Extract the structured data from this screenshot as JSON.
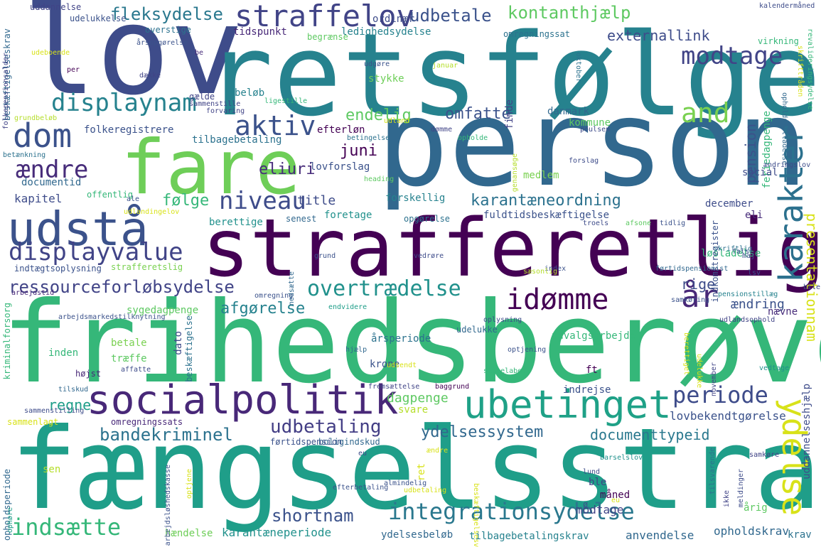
{
  "words": [
    {
      "text": "lov",
      "color": "#3e4c8a"
    },
    {
      "text": "retsfølge",
      "color": "#26828e"
    },
    {
      "text": "person",
      "color": "#31688e"
    },
    {
      "text": "fare",
      "color": "#6ece58"
    },
    {
      "text": "strafferetlig",
      "color": "#440154"
    },
    {
      "text": "udstå",
      "color": "#3b528b"
    },
    {
      "text": "frihedsberøve",
      "color": "#35b779"
    },
    {
      "text": "fængselsstraf",
      "color": "#1f9e89"
    },
    {
      "text": "socialpolitik",
      "color": "#482878"
    },
    {
      "text": "ubetinget",
      "color": "#1fa187"
    },
    {
      "text": "ydelse",
      "color": "#d8e219"
    },
    {
      "text": "karakter",
      "color": "#2c718e"
    },
    {
      "text": "straffelov",
      "color": "#414487"
    },
    {
      "text": "dom",
      "color": "#3b528b"
    },
    {
      "text": "displaynam",
      "color": "#26828e"
    },
    {
      "text": "displayvalue",
      "color": "#414487"
    },
    {
      "text": "aktiv",
      "color": "#3b528b"
    },
    {
      "text": "modtage",
      "color": "#414487"
    },
    {
      "text": "fleksydelse",
      "color": "#2a788e"
    },
    {
      "text": "udbetale",
      "color": "#3b528b"
    },
    {
      "text": "kontanthjælp",
      "color": "#5ec962"
    },
    {
      "text": "integrationsydelse",
      "color": "#2a788e"
    },
    {
      "text": "indsætte",
      "color": "#35b779"
    },
    {
      "text": "periode",
      "color": "#3e4c8a"
    },
    {
      "text": "idømme",
      "color": "#440154"
    },
    {
      "text": "overtrædelse",
      "color": "#21918c"
    },
    {
      "text": "ressourceforløbsydelse",
      "color": "#414487"
    },
    {
      "text": "niveau",
      "color": "#3e4c8a"
    },
    {
      "text": "ændre",
      "color": "#472c7a"
    },
    {
      "text": "år",
      "color": "#482878"
    },
    {
      "text": "and",
      "color": "#7ad151"
    },
    {
      "text": "udbetaling",
      "color": "#433e85"
    },
    {
      "text": "bandekriminel",
      "color": "#2c728e"
    },
    {
      "text": "shortnam",
      "color": "#3b528b"
    },
    {
      "text": "ydelsessystem",
      "color": "#31688e"
    },
    {
      "text": "documenttypeid",
      "color": "#2a788e"
    },
    {
      "text": "presentationnam",
      "color": "#d8e219"
    },
    {
      "text": "regne",
      "color": "#1f9e89"
    },
    {
      "text": "dagpenge",
      "color": "#5ec962"
    },
    {
      "text": "pension",
      "color": "#3b528b"
    },
    {
      "text": "endelig",
      "color": "#5ec962"
    },
    {
      "text": "omfatte",
      "color": "#3b528b"
    },
    {
      "text": "juni",
      "color": "#440154"
    },
    {
      "text": "eliuri",
      "color": "#472c7a"
    },
    {
      "text": "karantæneordning",
      "color": "#2c728e"
    },
    {
      "text": "afgørelse",
      "color": "#26828e"
    },
    {
      "text": "følge",
      "color": "#35b779"
    },
    {
      "text": "title",
      "color": "#3e4c8a"
    },
    {
      "text": "externallink",
      "color": "#3e4c8a"
    },
    {
      "text": "rige",
      "color": "#3e4c8a"
    },
    {
      "text": "ændring",
      "color": "#3b528b"
    },
    {
      "text": "lovbekendtgørelse",
      "color": "#3b528b"
    },
    {
      "text": "anvendelse",
      "color": "#31688e"
    },
    {
      "text": "opholdskrav",
      "color": "#31688e"
    },
    {
      "text": "karantæneperiode",
      "color": "#21918c"
    },
    {
      "text": "tilbagebetalingskrav",
      "color": "#26828e"
    },
    {
      "text": "ydelsesbeløb",
      "color": "#31688e"
    },
    {
      "text": "hændelse",
      "color": "#6ece58"
    },
    {
      "text": "modtage",
      "color": "#414487"
    },
    {
      "text": "krav",
      "color": "#2c728e"
    },
    {
      "text": "udvalgsarbejde",
      "color": "#35b779"
    },
    {
      "text": "sygedagpenge",
      "color": "#5ec962"
    },
    {
      "text": "udelukke",
      "color": "#31688e"
    },
    {
      "text": "årsperiode",
      "color": "#2c728e"
    },
    {
      "text": "indrejse",
      "color": "#3b528b"
    },
    {
      "text": "kapitel",
      "color": "#3e4c8a"
    },
    {
      "text": "documentid",
      "color": "#31688e"
    },
    {
      "text": "folkeregistrere",
      "color": "#3b528b"
    },
    {
      "text": "tilbagebetaling",
      "color": "#2c728e"
    },
    {
      "text": "lovforslag",
      "color": "#3b528b"
    },
    {
      "text": "efterløn",
      "color": "#440154"
    },
    {
      "text": "danmark",
      "color": "#31688e"
    },
    {
      "text": "kommune",
      "color": "#5ec962"
    },
    {
      "text": "feriedagpenge",
      "color": "#35b779"
    },
    {
      "text": "social",
      "color": "#3e4c8a"
    },
    {
      "text": "medlem",
      "color": "#7ad151"
    },
    {
      "text": "forskellig",
      "color": "#26828e"
    },
    {
      "text": "foretage",
      "color": "#21918c"
    },
    {
      "text": "fuldtidsbeskæftigelse",
      "color": "#3b528b"
    },
    {
      "text": "december",
      "color": "#3e4c8a"
    },
    {
      "text": "eli",
      "color": "#472c7a"
    },
    {
      "text": "senest",
      "color": "#31688e"
    },
    {
      "text": "berettige",
      "color": "#21918c"
    },
    {
      "text": "opgørelse",
      "color": "#2c728e"
    },
    {
      "text": "løsladelse",
      "color": "#35b779"
    },
    {
      "text": "ordinær",
      "color": "#3e4c8a"
    },
    {
      "text": "ledighedsydelse",
      "color": "#26828e"
    },
    {
      "text": "tidspunkt",
      "color": "#482878"
    },
    {
      "text": "udelukkelse",
      "color": "#3b528b"
    },
    {
      "text": "overstige",
      "color": "#2c728e"
    },
    {
      "text": "uddannelse",
      "color": "#414487"
    },
    {
      "text": "omregningssat",
      "color": "#2c728e"
    },
    {
      "text": "begrænse",
      "color": "#5ec962"
    },
    {
      "text": "beløb",
      "color": "#26828e"
    },
    {
      "text": "stykke",
      "color": "#6ece58"
    },
    {
      "text": "finde",
      "color": "#414487"
    },
    {
      "text": "indkomstregister",
      "color": "#3b528b"
    },
    {
      "text": "betale",
      "color": "#7ad151"
    },
    {
      "text": "træffe",
      "color": "#5ec962"
    },
    {
      "text": "inden",
      "color": "#35b779"
    },
    {
      "text": "højst",
      "color": "#482878"
    },
    {
      "text": "ft",
      "color": "#440154"
    },
    {
      "text": "krone",
      "color": "#3b528b"
    },
    {
      "text": "svare",
      "color": "#b5de2b"
    },
    {
      "text": "ble",
      "color": "#414487"
    },
    {
      "text": "boligindskud",
      "color": "#31688e"
    },
    {
      "text": "førtidspension",
      "color": "#3b528b"
    },
    {
      "text": "sen",
      "color": "#b5de2b"
    },
    {
      "text": "ret",
      "color": "#d8e219"
    },
    {
      "text": "eu",
      "color": "#3e4c8a"
    },
    {
      "text": "måned",
      "color": "#440154"
    },
    {
      "text": "årig",
      "color": "#5ec962"
    },
    {
      "text": "uddannelseshjælp",
      "color": "#3e4c8a"
    },
    {
      "text": "ø",
      "color": "#3b528b"
    },
    {
      "text": "nævne",
      "color": "#472c7a"
    },
    {
      "text": "dato",
      "color": "#3e4c8a"
    },
    {
      "text": "beskæftigelse",
      "color": "#2c728e"
    },
    {
      "text": "kriminalforsorg",
      "color": "#35b779"
    },
    {
      "text": "strafferetslig",
      "color": "#7ad151"
    },
    {
      "text": "indtægtsoplysning",
      "color": "#3b528b"
    },
    {
      "text": "arbejdstid",
      "color": "#482878"
    },
    {
      "text": "beskæftigelseskrav",
      "color": "#31688e"
    },
    {
      "text": "folkepensionsalder",
      "color": "#414487"
    },
    {
      "text": "grundbeløb",
      "color": "#b5de2b"
    },
    {
      "text": "betænkning",
      "color": "#2c728e"
    },
    {
      "text": "offentlig",
      "color": "#35b779"
    },
    {
      "text": "gælde",
      "color": "#414487"
    },
    {
      "text": "sammenstille",
      "color": "#414487"
    },
    {
      "text": "forvaring",
      "color": "#414487"
    },
    {
      "text": "pensionstillæg",
      "color": "#26828e"
    },
    {
      "text": "revalideringsydelse",
      "color": "#35b779"
    },
    {
      "text": "skrifttråden",
      "color": "#d8e219"
    },
    {
      "text": "opholdstilladelse",
      "color": "#31688e"
    },
    {
      "text": "ændringslov",
      "color": "#3e4c8a"
    },
    {
      "text": "kalendermåned",
      "color": "#3e4c8a"
    },
    {
      "text": "virkning",
      "color": "#35b779"
    },
    {
      "text": "sammenlagt",
      "color": "#d8e219"
    },
    {
      "text": "omregningssats",
      "color": "#482878"
    },
    {
      "text": "sammenstilling",
      "color": "#3e4c8a"
    },
    {
      "text": "tilskud",
      "color": "#31688e"
    },
    {
      "text": "arbejdsmarkedstilknytning",
      "color": "#3b528b"
    },
    {
      "text": "efterbetaling",
      "color": "#3b528b"
    },
    {
      "text": "almindelig",
      "color": "#3b528b"
    },
    {
      "text": "lund",
      "color": "#3e4c8a"
    },
    {
      "text": "barselslov",
      "color": "#21918c"
    },
    {
      "text": "tilsvarende",
      "color": "#2c728e"
    },
    {
      "text": "november",
      "color": "#414487"
    },
    {
      "text": "vedtage",
      "color": "#21918c"
    },
    {
      "text": "skriftlig",
      "color": "#2c728e"
    },
    {
      "text": "fals",
      "color": "#3b528b"
    },
    {
      "text": "maj",
      "color": "#3b528b"
    },
    {
      "text": "index",
      "color": "#3b528b"
    },
    {
      "text": "genansøge",
      "color": "#b5de2b"
    },
    {
      "text": "heading",
      "color": "#5ec962"
    },
    {
      "text": "forslag",
      "color": "#3e4c8a"
    },
    {
      "text": "troels",
      "color": "#3e4c8a"
    },
    {
      "text": "afsone",
      "color": "#5ec962"
    },
    {
      "text": "tidlig",
      "color": "#3b528b"
    },
    {
      "text": "udlandsophold",
      "color": "#414487"
    },
    {
      "text": "oplysning",
      "color": "#3e4c8a"
    },
    {
      "text": "hjælp",
      "color": "#31688e"
    },
    {
      "text": "affatte",
      "color": "#3e4c8a"
    },
    {
      "text": "statelabel",
      "color": "#35b779"
    },
    {
      "text": "optjening",
      "color": "#3b528b"
    },
    {
      "text": "baggrund",
      "color": "#440154"
    },
    {
      "text": "fremsættelse",
      "color": "#414487"
    },
    {
      "text": "januar",
      "color": "#b5de2b"
    },
    {
      "text": "oktober",
      "color": "#2c728e"
    },
    {
      "text": "poulsen",
      "color": "#3e4c8a"
    },
    {
      "text": "dømme",
      "color": "#414487"
    },
    {
      "text": "opholde",
      "color": "#35b779"
    },
    {
      "text": "betingelse",
      "color": "#2c728e"
    },
    {
      "text": "per",
      "color": "#440154"
    },
    {
      "text": "dække",
      "color": "#414487"
    },
    {
      "text": "udgøre",
      "color": "#3b528b"
    },
    {
      "text": "ligestille",
      "color": "#35b779"
    },
    {
      "text": "årsopgørelse",
      "color": "#3b528b"
    },
    {
      "text": "be",
      "color": "#472c7a"
    },
    {
      "text": "ale",
      "color": "#3b528b"
    },
    {
      "text": "udlandingelov",
      "color": "#d8e219"
    },
    {
      "text": "grund",
      "color": "#3b528b"
    },
    {
      "text": "vedrøre",
      "color": "#3e4c8a"
    },
    {
      "text": "omregning",
      "color": "#3b528b"
    },
    {
      "text": "endvidere",
      "color": "#1f9e89"
    },
    {
      "text": "samkøring",
      "color": "#3b528b"
    },
    {
      "text": "førtidspensionist",
      "color": "#31688e"
    },
    {
      "text": "lsv",
      "color": "#3b528b"
    },
    {
      "text": "sæsonlig",
      "color": "#b5de2b"
    },
    {
      "text": "nedsætte",
      "color": "#31688e"
    },
    {
      "text": "samkøre",
      "color": "#414487"
    },
    {
      "text": "meldinger",
      "color": "#3e4c8a"
    },
    {
      "text": "opholdsperiode",
      "color": "#31688e"
    },
    {
      "text": "arbejdsløshedskasse",
      "color": "#3b528b"
    },
    {
      "text": "ophøre",
      "color": "#1f9e89"
    },
    {
      "text": "optjene",
      "color": "#d8e219"
    },
    {
      "text": "ikke",
      "color": "#414487"
    },
    {
      "text": "bile",
      "color": "#3e4c8a"
    },
    {
      "text": "udland",
      "color": "#d8e219"
    },
    {
      "text": "berettiget",
      "color": "#d8e219"
    },
    {
      "text": "udelukke",
      "color": "#d8e219"
    },
    {
      "text": "udsendt",
      "color": "#d8e219"
    },
    {
      "text": "beskæftigelsesvej",
      "color": "#d8e219"
    },
    {
      "text": "udbetaling",
      "color": "#d8e219"
    },
    {
      "text": "udeboende",
      "color": "#d8e219"
    },
    {
      "text": "ændre",
      "color": "#d8e219"
    },
    {
      "text": "eu",
      "color": "#d8e219"
    }
  ]
}
